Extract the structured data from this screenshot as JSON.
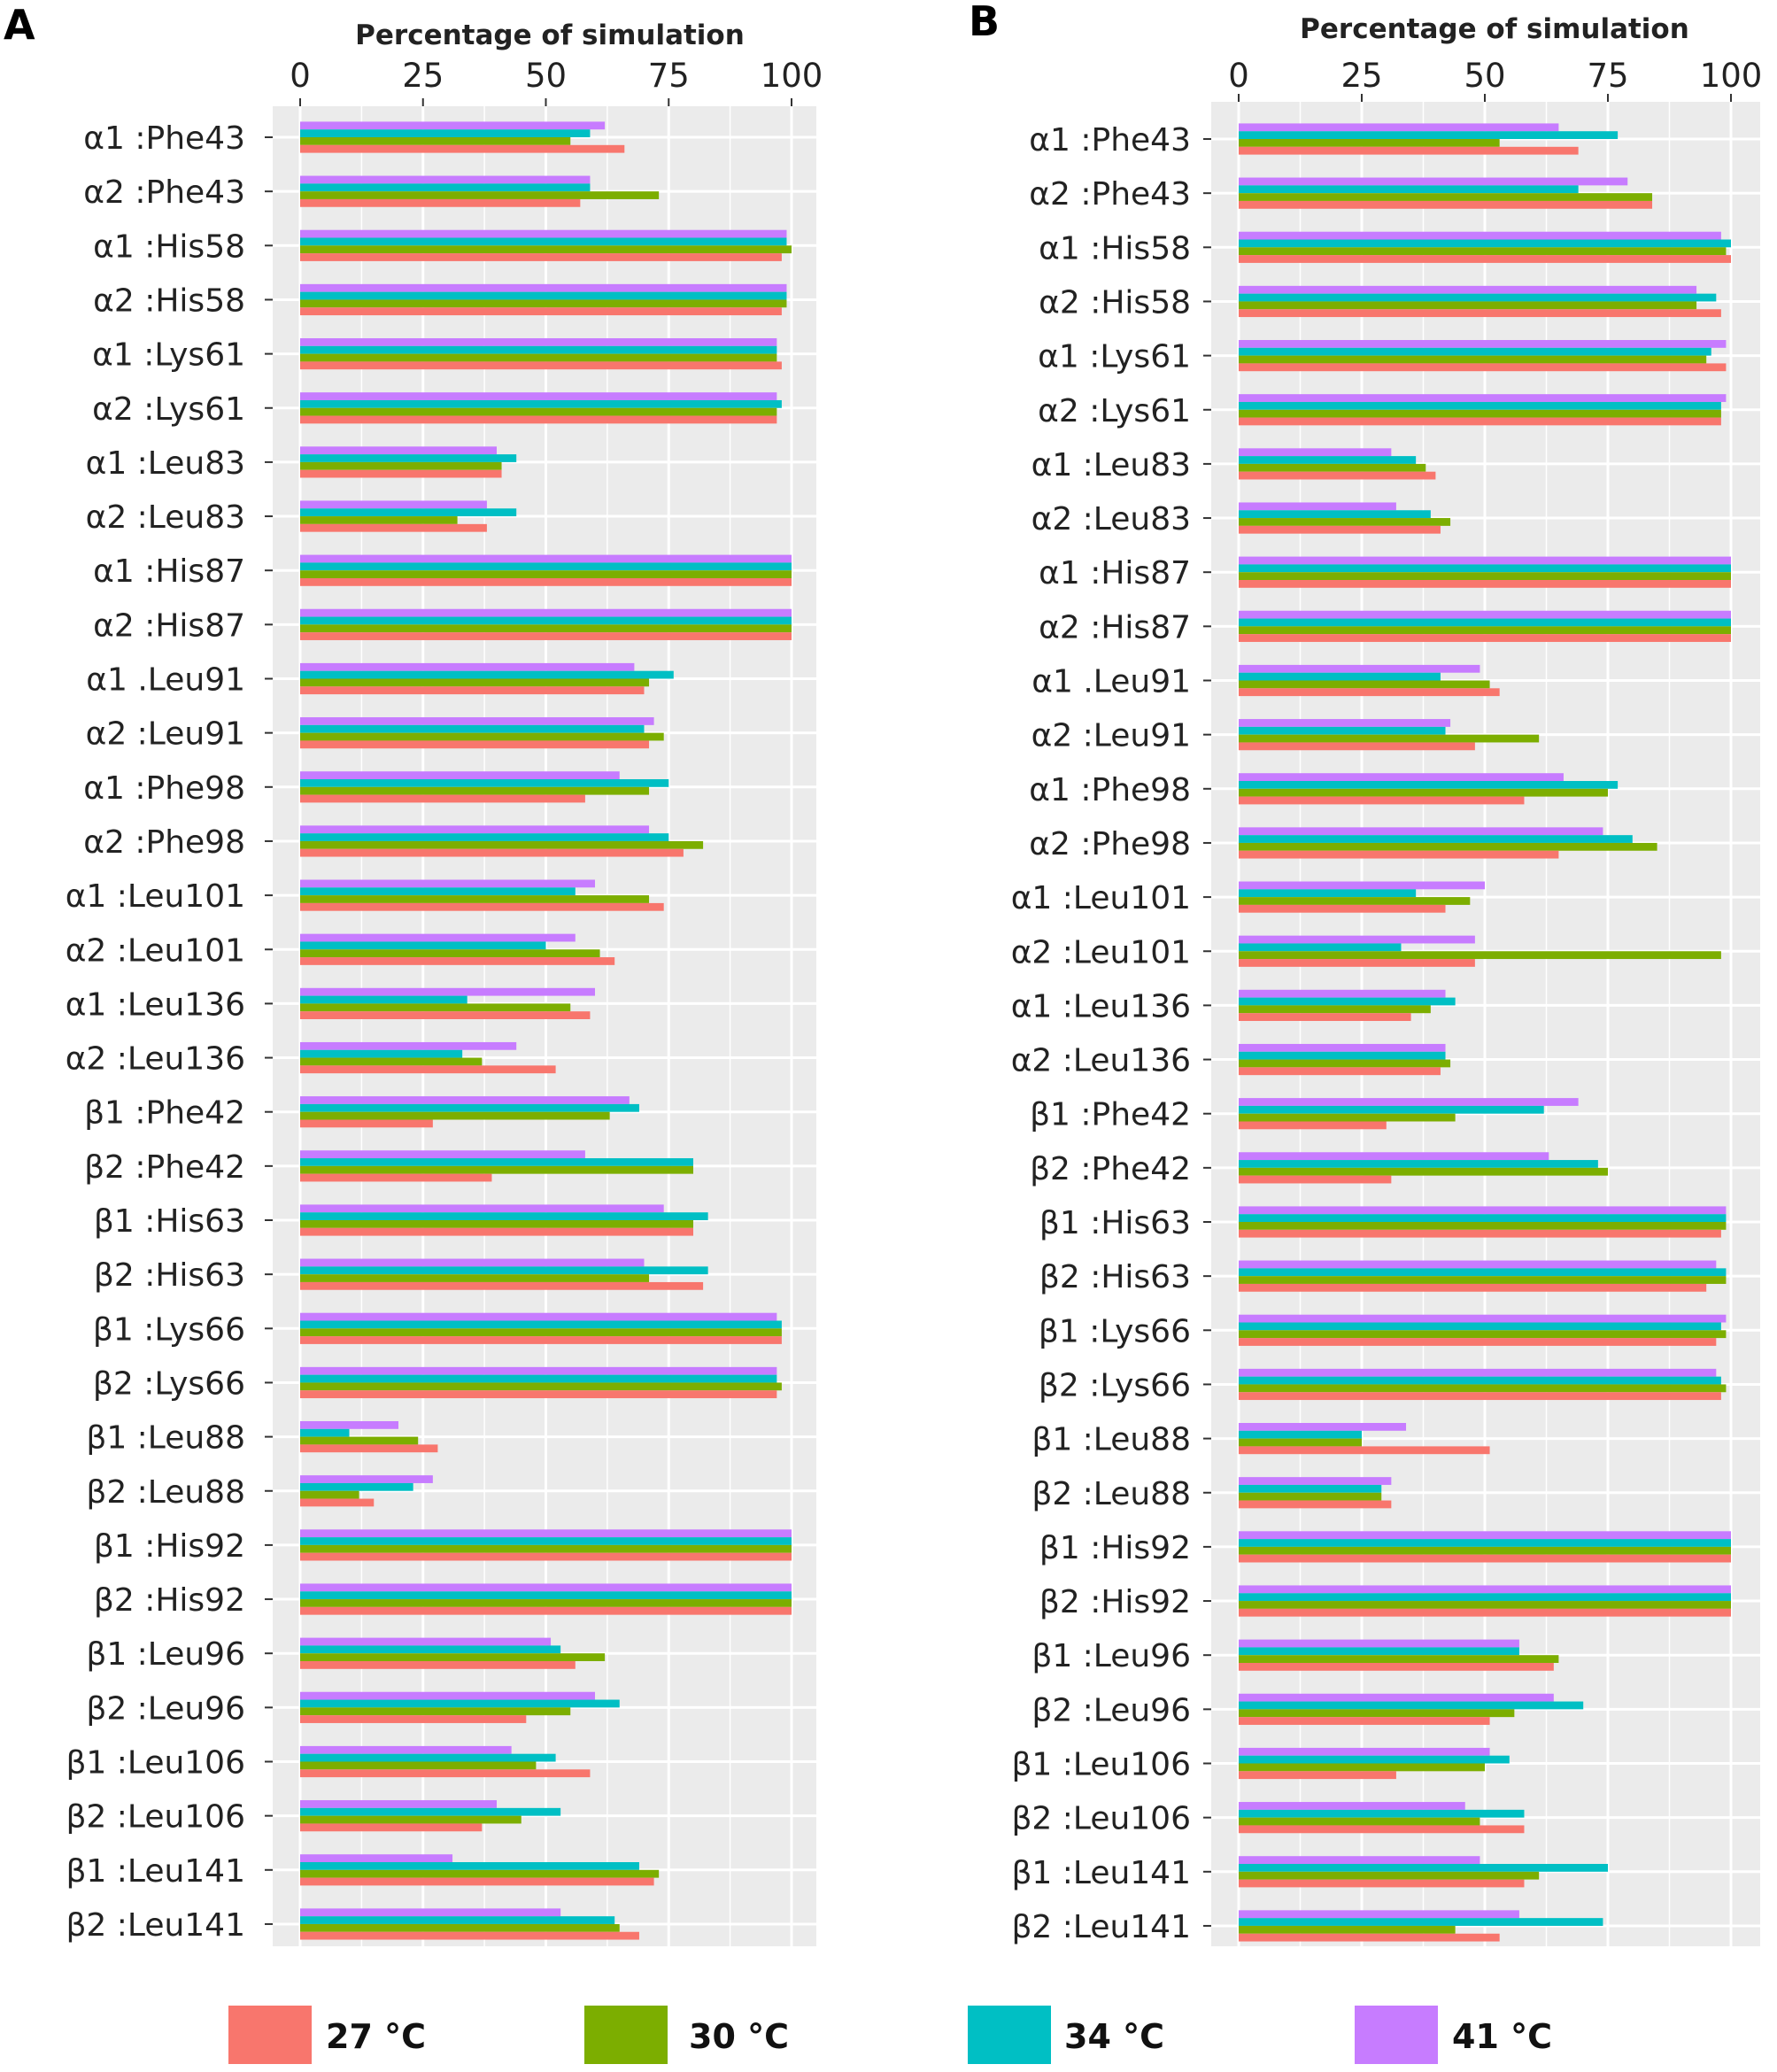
{
  "colors": {
    "27C": "#F8766D",
    "30C": "#7CAE00",
    "34C": "#00BFC4",
    "41C": "#C77CFF",
    "panel_bg": "#EBEBEB",
    "grid": "#FFFFFF"
  },
  "legend": [
    {
      "key": "27C",
      "label": "27 °C"
    },
    {
      "key": "30C",
      "label": "30 °C"
    },
    {
      "key": "34C",
      "label": "34 °C"
    },
    {
      "key": "41C",
      "label": "41 °C"
    }
  ],
  "chart_data": [
    {
      "panel": "A",
      "type": "bar",
      "orientation": "horizontal",
      "xlabel": "Percentage of simulation",
      "xaxis_position": "top",
      "xlim": [
        0,
        100
      ],
      "xticks": [
        0,
        25,
        50,
        75,
        100
      ],
      "xtick_labels": [
        "0",
        "25",
        "50",
        "75",
        "100"
      ],
      "grid": true,
      "legend_position": "bottom",
      "categories": [
        "α1 :Phe43",
        "α2 :Phe43",
        "α1 :His58",
        "α2 :His58",
        "α1 :Lys61",
        "α2 :Lys61",
        "α1 :Leu83",
        "α2 :Leu83",
        "α1 :His87",
        "α2 :His87",
        "α1 .Leu91",
        "α2 :Leu91",
        "α1 :Phe98",
        "α2 :Phe98",
        "α1 :Leu101",
        "α2 :Leu101",
        "α1 :Leu136",
        "α2 :Leu136",
        "β1 :Phe42",
        "β2 :Phe42",
        "β1 :His63",
        "β2 :His63",
        "β1 :Lys66",
        "β2 :Lys66",
        "β1 :Leu88",
        "β2 :Leu88",
        "β1 :His92",
        "β2 :His92",
        "β1 :Leu96",
        "β2 :Leu96",
        "β1 :Leu106",
        "β2 :Leu106",
        "β1 :Leu141",
        "β2 :Leu141"
      ],
      "series": [
        {
          "name": "27 °C",
          "values": [
            66,
            57,
            98,
            98,
            98,
            97,
            41,
            38,
            100,
            100,
            70,
            71,
            58,
            78,
            74,
            64,
            59,
            52,
            27,
            39,
            80,
            82,
            98,
            97,
            28,
            15,
            100,
            100,
            56,
            46,
            59,
            37,
            72,
            69
          ]
        },
        {
          "name": "30 °C",
          "values": [
            55,
            73,
            100,
            99,
            97,
            97,
            41,
            32,
            100,
            100,
            71,
            74,
            71,
            82,
            71,
            61,
            55,
            37,
            63,
            80,
            80,
            71,
            98,
            98,
            24,
            12,
            100,
            100,
            62,
            55,
            48,
            45,
            73,
            65
          ]
        },
        {
          "name": "34 °C",
          "values": [
            59,
            59,
            99,
            99,
            97,
            98,
            44,
            44,
            100,
            100,
            76,
            70,
            75,
            75,
            56,
            50,
            34,
            33,
            69,
            80,
            83,
            83,
            98,
            97,
            10,
            23,
            100,
            100,
            53,
            65,
            52,
            53,
            69,
            64
          ]
        },
        {
          "name": "41 °C",
          "values": [
            62,
            59,
            99,
            99,
            97,
            97,
            40,
            38,
            100,
            100,
            68,
            72,
            65,
            71,
            60,
            56,
            60,
            44,
            67,
            58,
            74,
            70,
            97,
            97,
            20,
            27,
            100,
            100,
            51,
            60,
            43,
            40,
            31,
            53
          ]
        }
      ]
    },
    {
      "panel": "B",
      "type": "bar",
      "orientation": "horizontal",
      "xlabel": "Percentage of simulation",
      "xaxis_position": "top",
      "xlim": [
        0,
        100
      ],
      "xticks": [
        0,
        25,
        50,
        75,
        100
      ],
      "xtick_labels": [
        "0",
        "25",
        "50",
        "75",
        "100"
      ],
      "grid": true,
      "legend_position": "bottom",
      "categories": [
        "α1 :Phe43",
        "α2 :Phe43",
        "α1 :His58",
        "α2 :His58",
        "α1 :Lys61",
        "α2 :Lys61",
        "α1 :Leu83",
        "α2 :Leu83",
        "α1 :His87",
        "α2 :His87",
        "α1 .Leu91",
        "α2 :Leu91",
        "α1 :Phe98",
        "α2 :Phe98",
        "α1 :Leu101",
        "α2 :Leu101",
        "α1 :Leu136",
        "α2 :Leu136",
        "β1 :Phe42",
        "β2 :Phe42",
        "β1 :His63",
        "β2 :His63",
        "β1 :Lys66",
        "β2 :Lys66",
        "β1 :Leu88",
        "β2 :Leu88",
        "β1 :His92",
        "β2 :His92",
        "β1 :Leu96",
        "β2 :Leu96",
        "β1 :Leu106",
        "β2 :Leu106",
        "β1 :Leu141",
        "β2 :Leu141"
      ],
      "series": [
        {
          "name": "27 °C",
          "values": [
            69,
            84,
            100,
            98,
            99,
            98,
            40,
            41,
            100,
            100,
            53,
            48,
            58,
            65,
            42,
            48,
            35,
            41,
            30,
            31,
            98,
            95,
            97,
            98,
            51,
            31,
            100,
            100,
            64,
            51,
            32,
            58,
            58,
            53
          ]
        },
        {
          "name": "30 °C",
          "values": [
            53,
            84,
            99,
            93,
            95,
            98,
            38,
            43,
            100,
            100,
            51,
            61,
            75,
            85,
            47,
            98,
            39,
            43,
            44,
            75,
            99,
            99,
            99,
            99,
            25,
            29,
            100,
            100,
            65,
            56,
            50,
            49,
            61,
            44
          ]
        },
        {
          "name": "34 °C",
          "values": [
            77,
            69,
            100,
            97,
            96,
            98,
            36,
            39,
            100,
            100,
            41,
            42,
            77,
            80,
            36,
            33,
            44,
            42,
            62,
            73,
            99,
            99,
            98,
            98,
            25,
            29,
            100,
            100,
            57,
            70,
            55,
            58,
            75,
            74
          ]
        },
        {
          "name": "41 °C",
          "values": [
            65,
            79,
            98,
            93,
            99,
            99,
            31,
            32,
            100,
            100,
            49,
            43,
            66,
            74,
            50,
            48,
            42,
            42,
            69,
            63,
            99,
            97,
            99,
            97,
            34,
            31,
            100,
            100,
            57,
            64,
            51,
            46,
            49,
            57
          ]
        }
      ]
    }
  ]
}
